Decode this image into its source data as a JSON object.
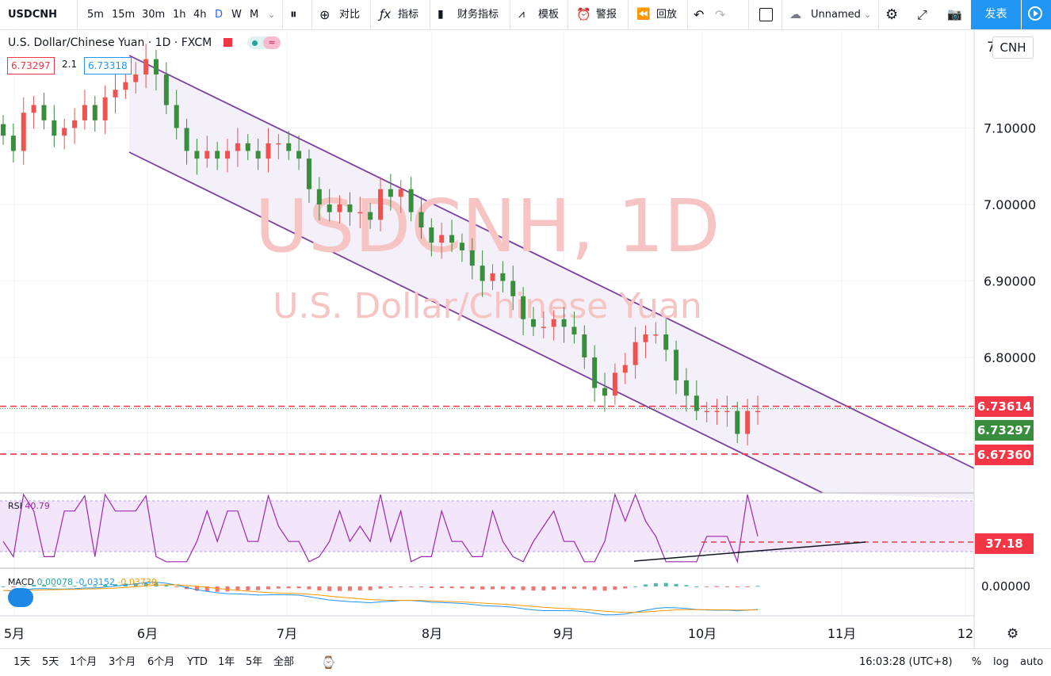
{
  "toolbar": {
    "symbol": "USDCNH",
    "intervals": [
      "5m",
      "15m",
      "30m",
      "1h",
      "4h",
      "D",
      "W",
      "M"
    ],
    "active_interval": "D",
    "compare": "对比",
    "indicators": "指标",
    "financials": "财务指标",
    "templates": "模板",
    "alert": "警报",
    "replay": "回放",
    "layout_name": "Unnamed",
    "publish": "发表"
  },
  "header": {
    "title": "U.S. Dollar/Chinese Yuan · 1D · FXCM",
    "bid": "6.73297",
    "spread": "2.1",
    "ask": "6.73318"
  },
  "watermark": {
    "line1": "USDCNH, 1D",
    "line2": "U.S. Dollar/Chinese Yuan"
  },
  "currency_button": "CNH",
  "price_axis": {
    "ticks": [
      {
        "label": "7.10000",
        "v": 7.1
      },
      {
        "label": "7.00000",
        "v": 7.0
      },
      {
        "label": "6.90000",
        "v": 6.9
      },
      {
        "label": "6.80000",
        "v": 6.8
      }
    ],
    "top_partial": "7",
    "labels": [
      {
        "text": "6.73614",
        "color": "#f23645",
        "v": 6.73614
      },
      {
        "text": "6.73297",
        "color": "#388e3c",
        "v": 6.73297
      },
      {
        "text": "6.67360",
        "color": "#f23645",
        "v": 6.6736
      }
    ]
  },
  "rsi": {
    "label": "RSI",
    "value": "40.79",
    "level_label": "37.18"
  },
  "macd": {
    "label": "MACD",
    "values": [
      "0.00078",
      "-0.03152",
      "-0.03730"
    ],
    "zero_label": "0.00000"
  },
  "time_axis": [
    "5月",
    "6月",
    "7月",
    "8月",
    "9月",
    "10月",
    "11月",
    "12"
  ],
  "bottom": {
    "ranges": [
      "1天",
      "5天",
      "1个月",
      "3个月",
      "6个月",
      "YTD",
      "1年",
      "5年",
      "全部"
    ],
    "time": "16:03:28 (UTC+8)",
    "percent": "%",
    "log": "log",
    "auto": "auto"
  },
  "colors": {
    "up": "#ef5350",
    "down": "#388e3c",
    "channel": "#7b3fa0",
    "rsi_line": "#9c27b0",
    "macd_line": "#2196f3",
    "signal_line": "#ff9800"
  },
  "chart_data": {
    "type": "candlestick",
    "symbol": "USDCNH",
    "interval": "1D",
    "ylim": [
      6.62,
      7.21
    ],
    "key_levels": [
      6.73614,
      6.6736
    ],
    "closes_sampled": [
      7.09,
      7.07,
      7.12,
      7.13,
      7.11,
      7.09,
      7.1,
      7.11,
      7.13,
      7.11,
      7.14,
      7.15,
      7.16,
      7.17,
      7.19,
      7.17,
      7.13,
      7.1,
      7.07,
      7.06,
      7.07,
      7.06,
      7.07,
      7.08,
      7.07,
      7.06,
      7.08,
      7.08,
      7.07,
      7.06,
      7.02,
      7.0,
      6.99,
      7.0,
      6.99,
      6.99,
      6.98,
      7.02,
      7.01,
      7.02,
      6.99,
      6.97,
      6.95,
      6.96,
      6.95,
      6.94,
      6.92,
      6.9,
      6.91,
      6.9,
      6.88,
      6.85,
      6.84,
      6.84,
      6.85,
      6.84,
      6.83,
      6.8,
      6.76,
      6.75,
      6.78,
      6.79,
      6.82,
      6.83,
      6.83,
      6.81,
      6.77,
      6.75,
      6.73,
      6.73,
      6.73,
      6.73,
      6.7,
      6.73,
      6.73
    ],
    "rsi_level": 37.18
  }
}
